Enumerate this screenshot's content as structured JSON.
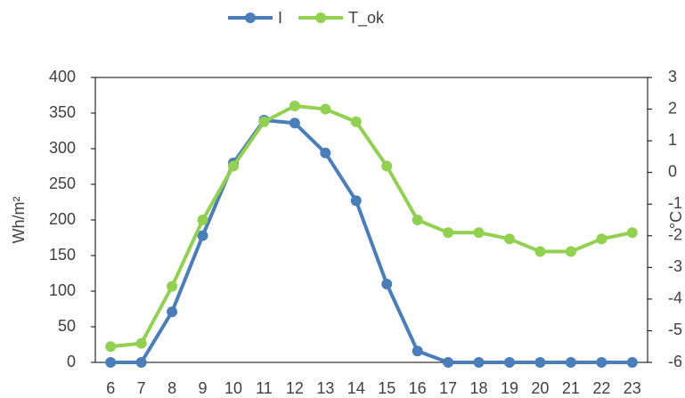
{
  "chart_data": {
    "type": "line",
    "categories": [
      6,
      7,
      8,
      9,
      10,
      11,
      12,
      13,
      14,
      15,
      16,
      17,
      18,
      19,
      20,
      21,
      22,
      23
    ],
    "series": [
      {
        "name": "I",
        "color": "#4a7ebb",
        "values": [
          0,
          0,
          71,
          178,
          280,
          340,
          336,
          294,
          227,
          110,
          16,
          0,
          0,
          0,
          0,
          0,
          0,
          0
        ]
      },
      {
        "name": "T_ok",
        "color": "#92d050",
        "axis": "y2",
        "values": [
          -5.5,
          -5.4,
          -3.6,
          -1.5,
          0.2,
          1.6,
          2.1,
          2.0,
          1.6,
          0.2,
          -1.5,
          -1.9,
          -1.9,
          -2.1,
          -2.5,
          -2.5,
          -2.1,
          -1.9
        ]
      }
    ],
    "ylabel": "Wh/m²",
    "y2label": "°C",
    "ylim": [
      0,
      400
    ],
    "yticks": [
      0,
      50,
      100,
      150,
      200,
      250,
      300,
      350,
      400
    ],
    "y2lim": [
      -6,
      3
    ],
    "y2ticks": [
      -6,
      -5,
      -4,
      -3,
      -2,
      -1,
      0,
      1,
      2,
      3
    ],
    "legend": "top"
  }
}
